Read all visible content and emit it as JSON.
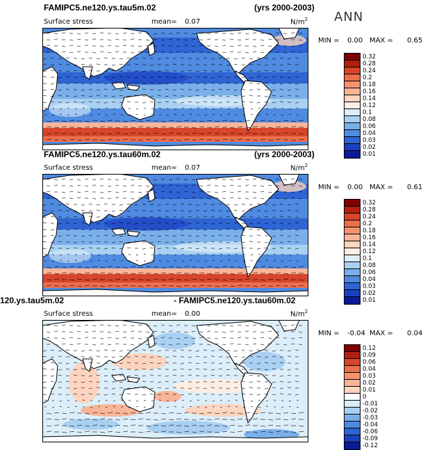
{
  "season": "ANN",
  "panels": [
    {
      "title_left": "FAMIPC5.ne120.ys.tau5m.02",
      "title_right": "(yrs 2000-2003)",
      "variable": "Surface stress",
      "mean_label": "mean=",
      "mean_value": "0.07",
      "unit": "N/m",
      "unit_exp": "2",
      "min_label": "MIN =",
      "min_value": "0.00",
      "max_label": "MAX =",
      "max_value": "0.65",
      "levels": [
        "0.32",
        "0.28",
        "0.24",
        "0.2",
        "0.18",
        "0.16",
        "0.14",
        "0.12",
        "0.1",
        "0.08",
        "0.06",
        "0.04",
        "0.03",
        "0.02",
        "0.01"
      ],
      "colors": [
        "#7f0000",
        "#b0200c",
        "#d7452a",
        "#ec6f4e",
        "#f4936e",
        "#f9b598",
        "#fcd4bf",
        "#fdeee4",
        "#dceefa",
        "#a9d0f2",
        "#7ab0ea",
        "#4f8be0",
        "#2f64d4",
        "#1a40c0",
        "#0b1a96"
      ]
    },
    {
      "title_left": "FAMIPC5.ne120.ys.tau60m.02",
      "title_right": "(yrs 2000-2003)",
      "variable": "Surface stress",
      "mean_label": "mean=",
      "mean_value": "0.07",
      "unit": "N/m",
      "unit_exp": "2",
      "min_label": "MIN =",
      "min_value": "0.00",
      "max_label": "MAX =",
      "max_value": "0.61",
      "levels": [
        "0.32",
        "0.28",
        "0.24",
        "0.2",
        "0.18",
        "0.16",
        "0.14",
        "0.12",
        "0.1",
        "0.08",
        "0.06",
        "0.04",
        "0.03",
        "0.02",
        "0.01"
      ],
      "colors": [
        "#7f0000",
        "#b0200c",
        "#d7452a",
        "#ec6f4e",
        "#f4936e",
        "#f9b598",
        "#fcd4bf",
        "#fdeee4",
        "#dceefa",
        "#a9d0f2",
        "#7ab0ea",
        "#4f8be0",
        "#2f64d4",
        "#1a40c0",
        "#0b1a96"
      ]
    },
    {
      "title_left": "120.ys.tau5m.02",
      "title_right": "- FAMIPC5.ne120.ys.tau60m.02",
      "variable": "Surface stress",
      "mean_label": "mean=",
      "mean_value": "0.00",
      "unit": "N/m",
      "unit_exp": "2",
      "min_label": "MIN =",
      "min_value": "-0.04",
      "max_label": "MAX =",
      "max_value": "0.04",
      "levels": [
        "0.12",
        "0.09",
        "0.06",
        "0.04",
        "0.03",
        "0.02",
        "0.01",
        "0",
        "-0.01",
        "-0.02",
        "-0.03",
        "-0.04",
        "-0.06",
        "-0.09",
        "-0.12"
      ],
      "colors": [
        "#7f0000",
        "#b0200c",
        "#d7452a",
        "#ec6f4e",
        "#f4936e",
        "#f9b598",
        "#fcd4bf",
        "#ffffff",
        "#dceefa",
        "#a9d0f2",
        "#7ab0ea",
        "#4f8be0",
        "#2f64d4",
        "#1a40c0",
        "#0b1a96"
      ]
    }
  ]
}
